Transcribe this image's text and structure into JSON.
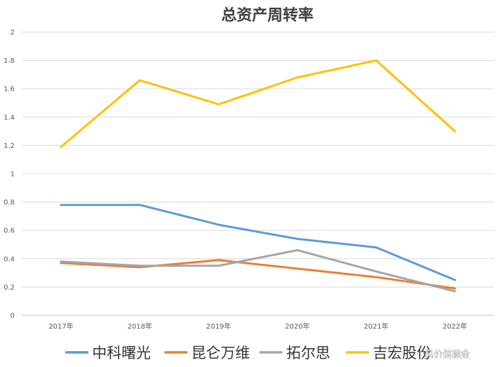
{
  "chart_data": {
    "type": "line",
    "title": "总资产周转率",
    "xlabel": "",
    "ylabel": "",
    "categories": [
      "2017年",
      "2018年",
      "2019年",
      "2020年",
      "2021年",
      "2022年"
    ],
    "ylim": [
      0,
      2
    ],
    "yticks": [
      "0",
      "0.2",
      "0.4",
      "0.6",
      "0.8",
      "1",
      "1.2",
      "1.4",
      "1.6",
      "1.8",
      "2"
    ],
    "grid": true,
    "legend_position": "bottom",
    "series": [
      {
        "name": "中科曙光",
        "color": "#5B9BD5",
        "values": [
          0.78,
          0.78,
          0.64,
          0.54,
          0.48,
          0.25
        ]
      },
      {
        "name": "昆仑万维",
        "color": "#ED7D31",
        "values": [
          0.37,
          0.34,
          0.39,
          0.33,
          0.27,
          0.19
        ]
      },
      {
        "name": "拓尔思",
        "color": "#A5A5A5",
        "values": [
          0.38,
          0.35,
          0.35,
          0.46,
          0.31,
          0.17
        ]
      },
      {
        "name": "吉宏股份",
        "color": "#FFC000",
        "values": [
          1.19,
          1.66,
          1.49,
          1.68,
          1.8,
          1.3
        ]
      }
    ]
  },
  "watermark": "风价值掘金"
}
